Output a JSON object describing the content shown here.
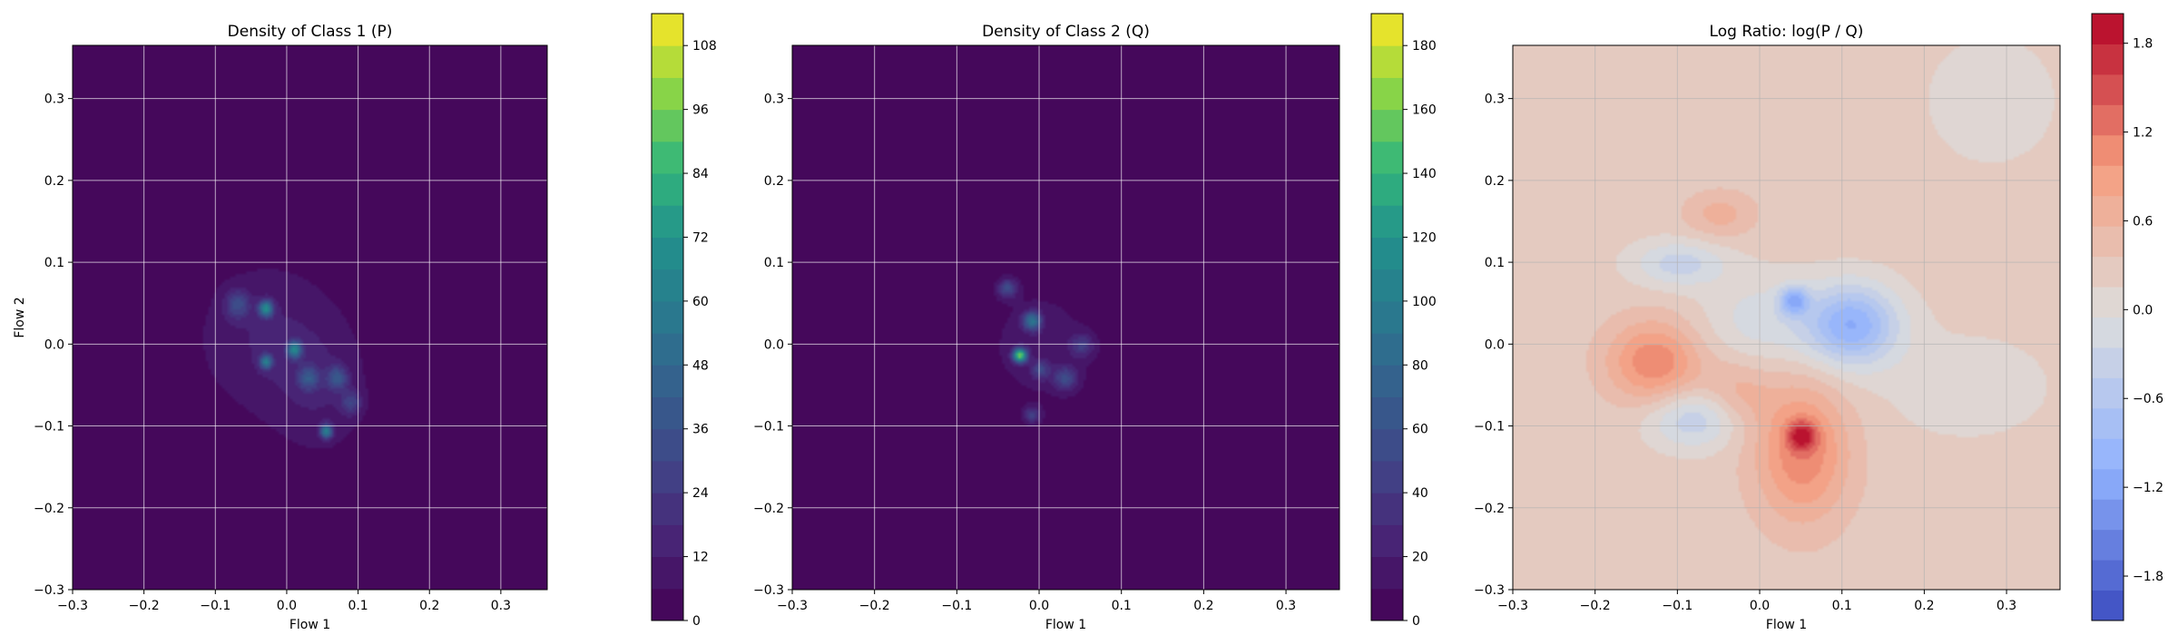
{
  "chart_data": [
    {
      "type": "heatmap",
      "title": "Density of Class 1 (P)",
      "xlabel": "Flow 1",
      "ylabel": "Flow 2",
      "xlim": [
        -0.3,
        0.365
      ],
      "ylim": [
        -0.3,
        0.365
      ],
      "xticks": [
        -0.3,
        -0.2,
        -0.1,
        0.0,
        0.1,
        0.2,
        0.3
      ],
      "yticks": [
        -0.3,
        -0.2,
        -0.1,
        0.0,
        0.1,
        0.2,
        0.3
      ],
      "xtick_labels": [
        "−0.3",
        "−0.2",
        "−0.1",
        "0.0",
        "0.1",
        "0.2",
        "0.3"
      ],
      "ytick_labels": [
        "−0.3",
        "−0.2",
        "−0.1",
        "0.0",
        "0.1",
        "0.2",
        "0.3"
      ],
      "grid": true,
      "colormap": "viridis",
      "colorbar": {
        "range": [
          0,
          114
        ],
        "ticks": [
          0,
          12,
          24,
          36,
          48,
          60,
          72,
          84,
          96,
          108
        ],
        "tick_labels": [
          "0",
          "12",
          "24",
          "36",
          "48",
          "60",
          "72",
          "84",
          "96",
          "108"
        ],
        "levels": 19
      },
      "density_peaks": [
        {
          "x": -0.03,
          "y": 0.01,
          "sx": 0.075,
          "sy": 0.07,
          "value": 12
        },
        {
          "x": 0.05,
          "y": -0.06,
          "sx": 0.05,
          "sy": 0.06,
          "value": 9
        },
        {
          "x": -0.03,
          "y": 0.045,
          "sx": 0.007,
          "sy": 0.007,
          "value": 60
        },
        {
          "x": 0.01,
          "y": -0.005,
          "sx": 0.007,
          "sy": 0.007,
          "value": 55
        },
        {
          "x": -0.03,
          "y": -0.02,
          "sx": 0.006,
          "sy": 0.006,
          "value": 50
        },
        {
          "x": 0.055,
          "y": -0.105,
          "sx": 0.006,
          "sy": 0.006,
          "value": 55
        },
        {
          "x": 0.07,
          "y": -0.04,
          "sx": 0.01,
          "sy": 0.01,
          "value": 30
        },
        {
          "x": 0.03,
          "y": -0.04,
          "sx": 0.01,
          "sy": 0.01,
          "value": 28
        },
        {
          "x": -0.07,
          "y": 0.05,
          "sx": 0.012,
          "sy": 0.012,
          "value": 25
        },
        {
          "x": 0.09,
          "y": -0.07,
          "sx": 0.01,
          "sy": 0.01,
          "value": 22
        }
      ]
    },
    {
      "type": "heatmap",
      "title": "Density of Class 2 (Q)",
      "xlabel": "Flow 1",
      "ylabel": "",
      "xlim": [
        -0.3,
        0.365
      ],
      "ylim": [
        -0.3,
        0.365
      ],
      "xticks": [
        -0.3,
        -0.2,
        -0.1,
        0.0,
        0.1,
        0.2,
        0.3
      ],
      "yticks": [
        -0.3,
        -0.2,
        -0.1,
        0.0,
        0.1,
        0.2,
        0.3
      ],
      "xtick_labels": [
        "−0.3",
        "−0.2",
        "−0.1",
        "0.0",
        "0.1",
        "0.2",
        "0.3"
      ],
      "ytick_labels": [
        "−0.3",
        "−0.2",
        "−0.1",
        "0.0",
        "0.1",
        "0.2",
        "0.3"
      ],
      "grid": true,
      "colormap": "viridis",
      "colorbar": {
        "range": [
          0,
          190
        ],
        "ticks": [
          0,
          20,
          40,
          60,
          80,
          100,
          120,
          140,
          160,
          180
        ],
        "tick_labels": [
          "0",
          "20",
          "40",
          "60",
          "80",
          "100",
          "120",
          "140",
          "160",
          "180"
        ],
        "levels": 19
      },
      "density_peaks": [
        {
          "x": 0.0,
          "y": 0.0,
          "sx": 0.06,
          "sy": 0.065,
          "value": 14
        },
        {
          "x": -0.025,
          "y": -0.012,
          "sx": 0.006,
          "sy": 0.006,
          "value": 150
        },
        {
          "x": -0.01,
          "y": 0.03,
          "sx": 0.008,
          "sy": 0.008,
          "value": 80
        },
        {
          "x": -0.04,
          "y": 0.07,
          "sx": 0.008,
          "sy": 0.008,
          "value": 50
        },
        {
          "x": 0.03,
          "y": -0.04,
          "sx": 0.01,
          "sy": 0.01,
          "value": 45
        },
        {
          "x": -0.01,
          "y": -0.085,
          "sx": 0.007,
          "sy": 0.007,
          "value": 40
        },
        {
          "x": 0.05,
          "y": 0.0,
          "sx": 0.01,
          "sy": 0.01,
          "value": 35
        },
        {
          "x": 0.0,
          "y": -0.03,
          "sx": 0.008,
          "sy": 0.008,
          "value": 40
        }
      ]
    },
    {
      "type": "heatmap",
      "title": "Log Ratio: log(P / Q)",
      "xlabel": "Flow 1",
      "ylabel": "",
      "xlim": [
        -0.3,
        0.365
      ],
      "ylim": [
        -0.3,
        0.365
      ],
      "xticks": [
        -0.3,
        -0.2,
        -0.1,
        0.0,
        0.1,
        0.2,
        0.3
      ],
      "yticks": [
        -0.3,
        -0.2,
        -0.1,
        0.0,
        0.1,
        0.2,
        0.3
      ],
      "xtick_labels": [
        "−0.3",
        "−0.2",
        "−0.1",
        "0.0",
        "0.1",
        "0.2",
        "0.3"
      ],
      "ytick_labels": [
        "−0.3",
        "−0.2",
        "−0.1",
        "0.0",
        "0.1",
        "0.2",
        "0.3"
      ],
      "grid": true,
      "colormap": "coolwarm",
      "background_value": 0.25,
      "colorbar": {
        "range": [
          -2.1,
          2.0
        ],
        "ticks": [
          -1.8,
          -1.2,
          -0.6,
          0.0,
          0.6,
          1.2,
          1.8
        ],
        "tick_labels": [
          "−1.8",
          "−1.2",
          "−0.6",
          "0.0",
          "0.6",
          "1.2",
          "1.8"
        ],
        "levels": 20
      },
      "ratio_features": [
        {
          "x": 0.05,
          "y": -0.13,
          "sx": 0.04,
          "sy": 0.06,
          "value": 0.9
        },
        {
          "x": 0.05,
          "y": -0.11,
          "sx": 0.012,
          "sy": 0.012,
          "value": 1.0
        },
        {
          "x": -0.13,
          "y": -0.02,
          "sx": 0.04,
          "sy": 0.035,
          "value": 0.9
        },
        {
          "x": 0.11,
          "y": 0.025,
          "sx": 0.04,
          "sy": 0.035,
          "value": -1.3
        },
        {
          "x": 0.04,
          "y": 0.055,
          "sx": 0.012,
          "sy": 0.012,
          "value": -1.1
        },
        {
          "x": -0.08,
          "y": -0.09,
          "sx": 0.04,
          "sy": 0.025,
          "value": -0.7
        },
        {
          "x": -0.1,
          "y": 0.1,
          "sx": 0.04,
          "sy": 0.02,
          "value": -0.6
        },
        {
          "x": 0.0,
          "y": 0.03,
          "sx": 0.05,
          "sy": 0.04,
          "value": -0.4
        },
        {
          "x": -0.03,
          "y": -0.06,
          "sx": 0.03,
          "sy": 0.03,
          "value": 0.4
        },
        {
          "x": -0.05,
          "y": 0.16,
          "sx": 0.03,
          "sy": 0.02,
          "value": 0.4
        },
        {
          "x": 0.25,
          "y": -0.05,
          "sx": 0.08,
          "sy": 0.05,
          "value": -0.2
        },
        {
          "x": 0.28,
          "y": 0.3,
          "sx": 0.08,
          "sy": 0.08,
          "value": -0.15
        }
      ]
    }
  ]
}
